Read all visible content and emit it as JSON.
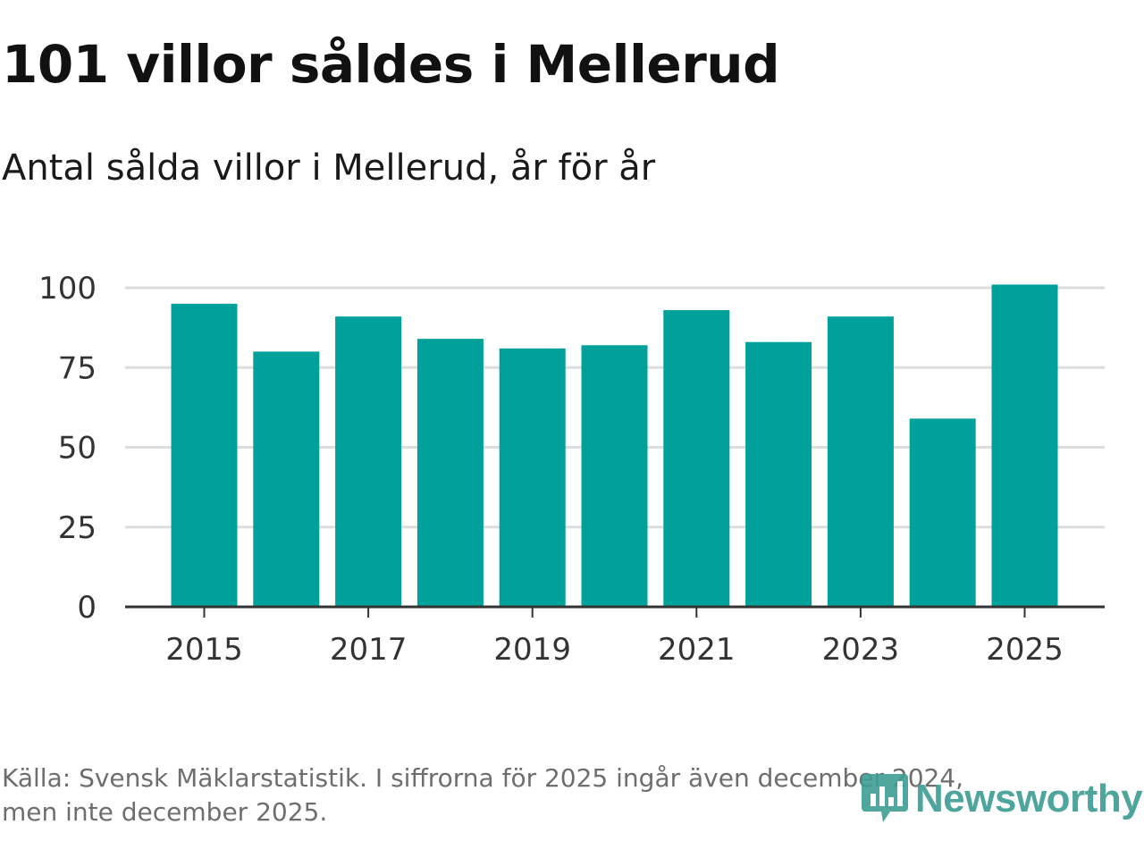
{
  "header": {
    "title": "101 villor såldes i Mellerud",
    "subtitle": "Antal sålda villor i Mellerud, år för år"
  },
  "footer": {
    "source_line1": "Källa: Svensk Mäklarstatistik. I siffrorna för 2025 ingår även december 2024,",
    "source_line2": "men inte december 2025."
  },
  "brand": {
    "name": "Newsworthy",
    "logo_icon": "newsworthy-chart-bubble-icon",
    "color": "#3e9e93"
  },
  "colors": {
    "bar": "#00a19a",
    "grid": "#dddddd",
    "axis": "#333333"
  },
  "chart_data": {
    "type": "bar",
    "title": "101 villor såldes i Mellerud",
    "subtitle": "Antal sålda villor i Mellerud, år för år",
    "xlabel": "",
    "ylabel": "",
    "categories": [
      "2015",
      "2016",
      "2017",
      "2018",
      "2019",
      "2020",
      "2021",
      "2022",
      "2023",
      "2024",
      "2025"
    ],
    "values": [
      95,
      80,
      91,
      84,
      81,
      82,
      93,
      83,
      91,
      59,
      101
    ],
    "ylim": [
      0,
      100
    ],
    "yticks": [
      0,
      25,
      50,
      75,
      100
    ],
    "xtick_labels": [
      "2015",
      "2017",
      "2019",
      "2021",
      "2023",
      "2025"
    ],
    "grid": true,
    "legend": "none"
  }
}
